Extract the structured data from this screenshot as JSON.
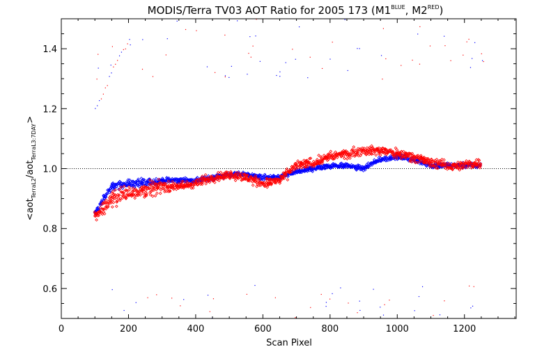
{
  "chart_data": {
    "type": "scatter",
    "title": {
      "main": "MODIS/Terra TV03 AOT Ratio for 2005 173 (M1",
      "sup1": "BLUE",
      "mid": ", M2",
      "sup2": "RED",
      "end": ")"
    },
    "xlabel": "Scan Pixel",
    "ylabel": {
      "a": "<aot",
      "sub1": "TerraL2",
      "b": "/aot",
      "sub2": "TerraL3:7DAY",
      "c": ">"
    },
    "xlim": [
      0,
      1354
    ],
    "ylim": [
      0.5,
      1.5
    ],
    "xticks": [
      0,
      200,
      400,
      600,
      800,
      1000,
      1200
    ],
    "xtick_labels": [
      "0",
      "200",
      "400",
      "600",
      "800",
      "1000",
      "1200"
    ],
    "yticks": [
      0.6,
      0.8,
      1.0,
      1.2,
      1.4
    ],
    "ytick_labels": [
      "0.6",
      "0.8",
      "1.0",
      "1.2",
      "1.4"
    ],
    "reference_line": {
      "y": 1.0,
      "style": "dotted"
    },
    "series": [
      {
        "color": "#0000ff",
        "marker": "diamond",
        "x": [
          100,
          150,
          200,
          250,
          300,
          350,
          400,
          450,
          500,
          550,
          600,
          650,
          700,
          750,
          800,
          850,
          900,
          950,
          1000,
          1050,
          1100,
          1150,
          1200,
          1250
        ],
        "y": [
          0.85,
          0.94,
          0.95,
          0.95,
          0.96,
          0.96,
          0.96,
          0.97,
          0.98,
          0.98,
          0.97,
          0.97,
          0.99,
          1.0,
          1.01,
          1.01,
          1.0,
          1.03,
          1.04,
          1.03,
          1.01,
          1.01,
          1.01,
          1.01
        ]
      },
      {
        "color": "#ff0000",
        "marker": "diamond",
        "x": [
          100,
          150,
          200,
          250,
          300,
          350,
          400,
          450,
          500,
          550,
          600,
          650,
          700,
          750,
          800,
          850,
          900,
          950,
          1000,
          1050,
          1100,
          1150,
          1200,
          1250
        ],
        "y": [
          0.84,
          0.9,
          0.92,
          0.93,
          0.94,
          0.94,
          0.95,
          0.97,
          0.98,
          0.97,
          0.95,
          0.96,
          1.01,
          1.02,
          1.04,
          1.05,
          1.06,
          1.06,
          1.05,
          1.04,
          1.02,
          1.01,
          1.01,
          1.02
        ]
      }
    ],
    "scattered_outliers": {
      "upper_range": [
        1.3,
        1.5
      ],
      "lower_range": [
        0.5,
        0.62
      ]
    }
  }
}
